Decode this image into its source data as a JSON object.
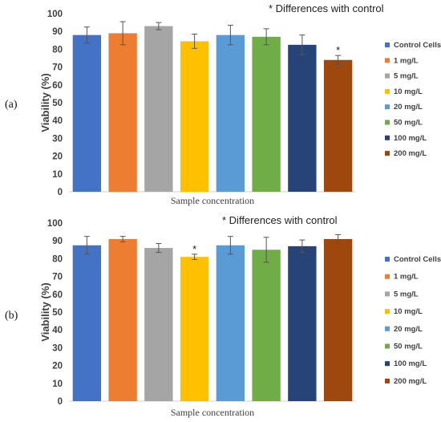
{
  "chart_data": [
    {
      "type": "bar",
      "panel_label": "(a)",
      "annotation": "* Differences with control",
      "xlabel": "Sample concentration",
      "ylabel": "Viability (%)",
      "ylim": [
        0,
        100
      ],
      "yticks": [
        "0",
        "10",
        "20",
        "30",
        "40",
        "50",
        "60",
        "70",
        "80",
        "90",
        "100"
      ],
      "categories": [
        "Control Cells",
        "1 mg/L",
        "5 mg/L",
        "10 mg/L",
        "20 mg/L",
        "50 mg/L",
        "100 mg/L",
        "200 mg/L"
      ],
      "values": [
        88,
        89,
        93,
        84.5,
        88,
        87,
        82.5,
        74
      ],
      "errors": [
        4.5,
        6.5,
        2,
        4,
        5.5,
        4.5,
        5.5,
        2.5
      ],
      "significant": [
        false,
        false,
        false,
        false,
        false,
        false,
        false,
        true
      ],
      "colors": [
        "#4472C4",
        "#ED7D31",
        "#A5A5A5",
        "#FFC000",
        "#5B9BD5",
        "#70AD47",
        "#264478",
        "#9E480E"
      ],
      "grid": false,
      "legend_position": "right"
    },
    {
      "type": "bar",
      "panel_label": "(b)",
      "annotation": "* Differences with control",
      "xlabel": "Sample concentration",
      "ylabel": "Viability (%)",
      "ylim": [
        0,
        100
      ],
      "yticks": [
        "0",
        "10",
        "20",
        "30",
        "40",
        "50",
        "60",
        "70",
        "80",
        "90",
        "100"
      ],
      "categories": [
        "Control Cells",
        "1 mg/L",
        "5 mg/L",
        "10 mg/L",
        "20 mg/L",
        "50 mg/L",
        "100 mg/L",
        "200 mg/L"
      ],
      "values": [
        87.5,
        91,
        86,
        81,
        87.5,
        85,
        87,
        91
      ],
      "errors": [
        5,
        1.5,
        2.5,
        1.5,
        5,
        7,
        3.5,
        2.5
      ],
      "significant": [
        false,
        false,
        false,
        true,
        false,
        false,
        false,
        false
      ],
      "colors": [
        "#4472C4",
        "#ED7D31",
        "#A5A5A5",
        "#FFC000",
        "#5B9BD5",
        "#70AD47",
        "#264478",
        "#9E480E"
      ],
      "grid": false,
      "legend_position": "right"
    }
  ]
}
